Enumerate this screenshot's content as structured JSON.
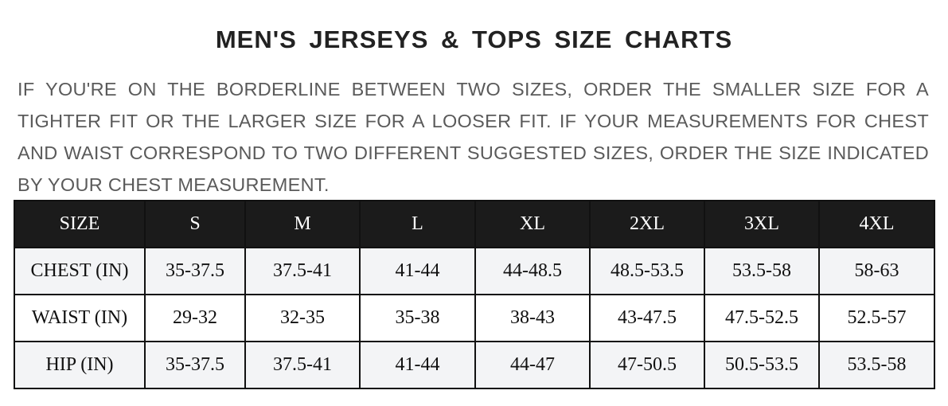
{
  "title": "MEN'S JERSEYS & TOPS SIZE CHARTS",
  "note": "IF YOU'RE ON THE BORDERLINE BETWEEN TWO SIZES, ORDER THE SMALLER SIZE FOR A TIGHTER FIT OR THE LARGER SIZE FOR A LOOSER FIT. IF YOUR MEASUREMENTS FOR CHEST AND WAIST CORRESPOND TO TWO DIFFERENT SUGGESTED SIZES, ORDER THE SIZE INDICATED BY YOUR CHEST MEASUREMENT.",
  "table": {
    "headers": [
      "SIZE",
      "S",
      "M",
      "L",
      "XL",
      "2XL",
      "3XL",
      "4XL"
    ],
    "rows": [
      [
        "CHEST (IN)",
        "35-37.5",
        "37.5-41",
        "41-44",
        "44-48.5",
        "48.5-53.5",
        "53.5-58",
        "58-63"
      ],
      [
        "WAIST (IN)",
        "29-32",
        "32-35",
        "35-38",
        "38-43",
        "43-47.5",
        "47.5-52.5",
        "52.5-57"
      ],
      [
        "HIP (IN)",
        "35-37.5",
        "37.5-41",
        "41-44",
        "44-47",
        "47-50.5",
        "50.5-53.5",
        "53.5-58"
      ]
    ]
  },
  "colors": {
    "header_bg": "#1b1b1b",
    "alt_row_bg": "#f3f4f6",
    "note_text": "#5a5a5a"
  }
}
